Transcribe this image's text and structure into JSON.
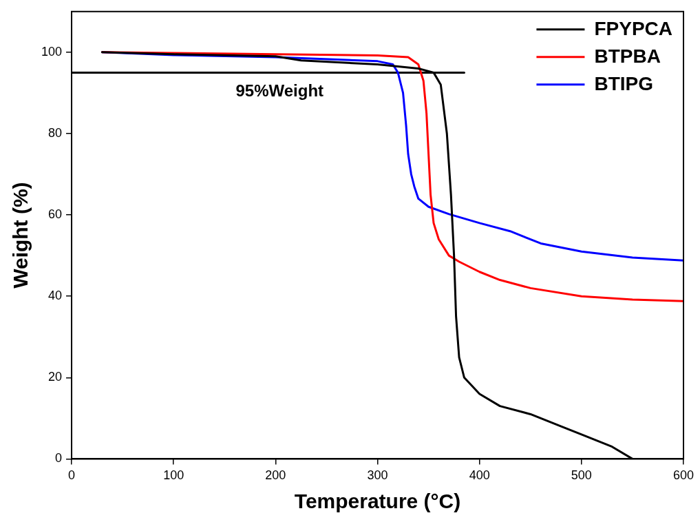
{
  "chart_data": {
    "type": "line",
    "xlabel": "Temperature (°C)",
    "ylabel": "Weight (%)",
    "xlim": [
      0,
      600
    ],
    "xticks": [
      0,
      100,
      200,
      300,
      400,
      500,
      600
    ],
    "ylim": [
      0,
      110
    ],
    "yticks": [
      0,
      20,
      40,
      60,
      80,
      100
    ],
    "grid": false,
    "legend": "top right",
    "marker": "none",
    "line_style": "solid",
    "annotations": [
      "95%Weight"
    ],
    "series": [
      {
        "name": "FPYPCA",
        "color": "#000000",
        "x": [
          30,
          100,
          200,
          225,
          300,
          340,
          355,
          362,
          368,
          372,
          375,
          377,
          380,
          385,
          400,
          420,
          450,
          480,
          500,
          530,
          550
        ],
        "values": [
          100,
          99.5,
          99,
          98,
          97,
          96,
          95,
          92,
          80,
          65,
          50,
          35,
          25,
          20,
          16,
          13,
          11,
          8,
          6,
          3,
          0
        ]
      },
      {
        "name": "BTPBA",
        "color": "#ff0000",
        "x": [
          30,
          100,
          200,
          300,
          330,
          340,
          345,
          348,
          350,
          352,
          355,
          360,
          370,
          380,
          400,
          420,
          450,
          500,
          550,
          600
        ],
        "values": [
          100,
          99.8,
          99.5,
          99.2,
          98.8,
          97,
          93,
          85,
          75,
          65,
          58,
          54,
          50,
          48.5,
          46,
          44,
          42,
          40,
          39.2,
          38.8
        ]
      },
      {
        "name": "BTIPG",
        "color": "#0000ff",
        "x": [
          30,
          100,
          200,
          300,
          315,
          320,
          325,
          328,
          330,
          333,
          336,
          340,
          350,
          370,
          400,
          430,
          460,
          500,
          550,
          600
        ],
        "values": [
          100,
          99.3,
          98.8,
          97.8,
          97,
          95,
          90,
          82,
          75,
          70,
          67,
          64,
          62,
          60.2,
          58,
          56,
          53,
          51,
          49.5,
          48.8
        ]
      },
      {
        "color": "#000000",
        "x": [
          0,
          385
        ],
        "values": [
          95,
          95
        ]
      }
    ]
  }
}
